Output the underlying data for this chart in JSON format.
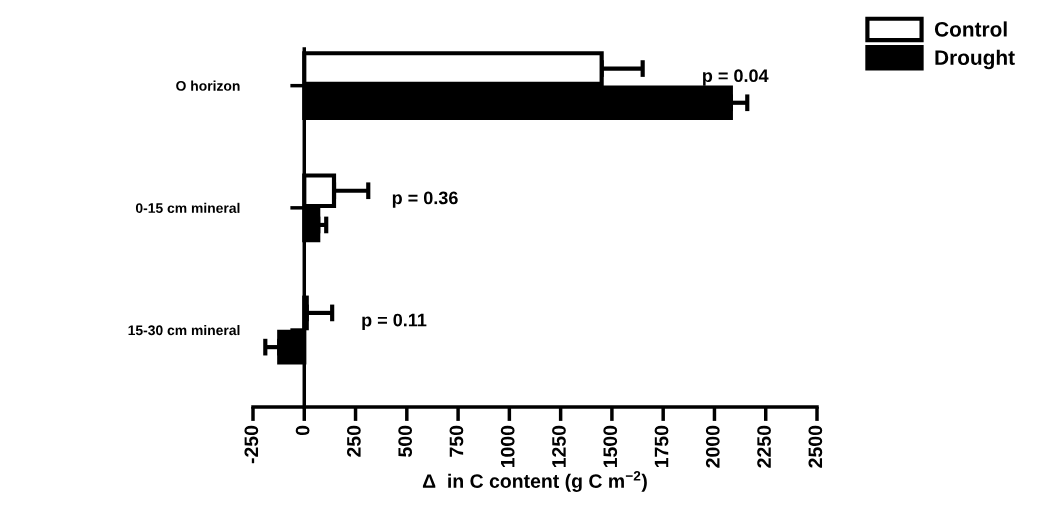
{
  "chart_data": {
    "type": "bar",
    "orientation": "horizontal",
    "categories": [
      "O horizon",
      "0-15 cm mineral",
      "15-30 cm mineral"
    ],
    "series": [
      {
        "name": "Control",
        "color": "#ffffff",
        "values": [
          1450,
          145,
          12
        ],
        "errors": [
          [
            1450,
            1650
          ],
          [
            145,
            312
          ],
          [
            12,
            136
          ]
        ]
      },
      {
        "name": "Drought",
        "color": "#000000",
        "values": [
          2080,
          68,
          -122
        ],
        "errors": [
          [
            2080,
            2160
          ],
          [
            68,
            107
          ],
          [
            -190,
            -122
          ]
        ]
      }
    ],
    "xlabel": "Δ  in C content (g C m$^{−2}$)",
    "xlim": [
      -250,
      2500
    ],
    "xticks": [
      -250,
      0,
      250,
      500,
      750,
      1000,
      1250,
      1500,
      1750,
      2000,
      2250,
      2500
    ],
    "annotations": [
      "p = 0.04",
      "p = 0.36",
      "p = 0.11"
    ],
    "legend": "top right"
  }
}
